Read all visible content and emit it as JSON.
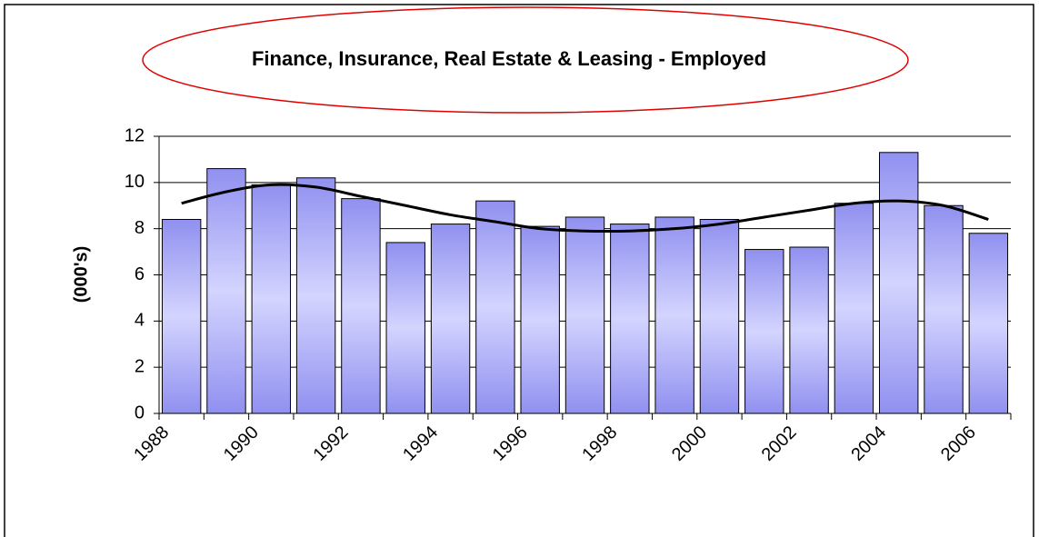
{
  "chart_data": {
    "type": "bar",
    "title": "Finance, Insurance, Real Estate & Leasing - Employed",
    "y_label": "(000's)",
    "categories": [
      "1988",
      null,
      "1990",
      null,
      "1992",
      null,
      "1994",
      null,
      "1996",
      null,
      "1998",
      null,
      "2000",
      null,
      "2002",
      null,
      "2004",
      null,
      "2006"
    ],
    "values": [
      8.4,
      10.6,
      9.9,
      10.2,
      9.3,
      7.4,
      8.2,
      9.2,
      8.1,
      8.5,
      8.2,
      8.5,
      8.4,
      7.1,
      7.2,
      9.1,
      11.3,
      9.0,
      7.8
    ],
    "color": "#9999ff",
    "trend": {
      "color": "#000000",
      "values": [
        9.1,
        9.6,
        9.9,
        9.8,
        9.4,
        9.0,
        8.6,
        8.3,
        8.0,
        7.9,
        7.9,
        8.0,
        8.2,
        8.5,
        8.8,
        9.1,
        9.2,
        9.0,
        8.4
      ]
    },
    "ylim": [
      0,
      12
    ],
    "yticks": [
      0,
      2,
      4,
      6,
      8,
      10,
      12
    ],
    "grid": true
  }
}
